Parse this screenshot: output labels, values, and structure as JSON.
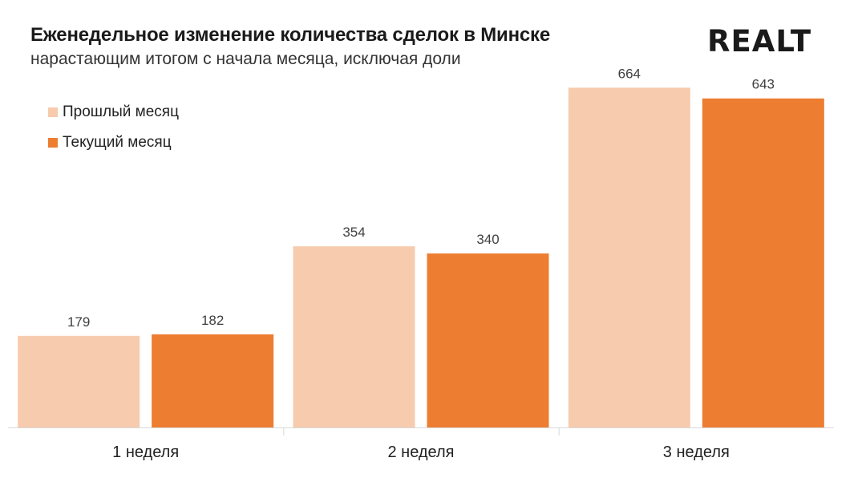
{
  "header": {
    "title": "Еженедельное изменение количества сделок в Минске",
    "subtitle": "нарастающим итогом с начала месяца, исключая доли",
    "logo": "REALT"
  },
  "colors": {
    "previous": "#f7cbad",
    "current": "#ed7d31",
    "axis": "#d9d9d9"
  },
  "chart_data": {
    "type": "bar",
    "categories": [
      "1 неделя",
      "2 неделя",
      "3 неделя"
    ],
    "series": [
      {
        "name": "Прошлый месяц",
        "values": [
          179,
          354,
          664
        ]
      },
      {
        "name": "Текущий месяц",
        "values": [
          182,
          340,
          643
        ]
      }
    ],
    "title": "Еженедельное изменение количества сделок в Минске",
    "subtitle": "нарастающим итогом с начала месяца, исключая доли",
    "legend_position": "top-left",
    "grid": false,
    "ylim": [
      0,
      710
    ]
  }
}
